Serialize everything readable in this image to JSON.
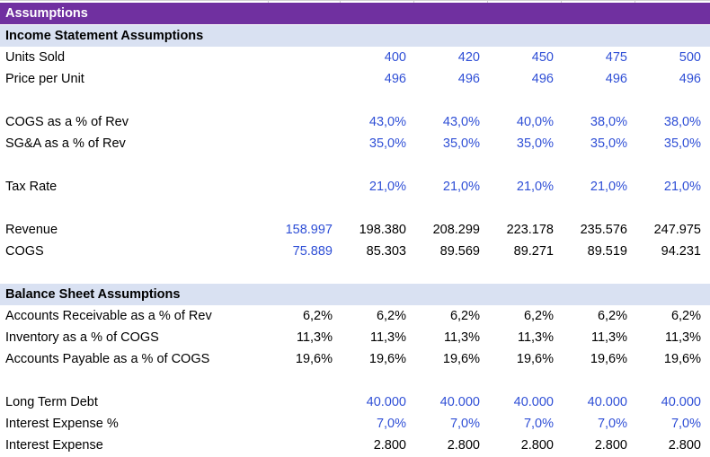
{
  "title": "Assumptions",
  "income_section": "Income Statement Assumptions",
  "balance_section": "Balance Sheet Assumptions",
  "rows": {
    "units_sold": {
      "label": "Units Sold",
      "values": [
        "",
        "400",
        "420",
        "450",
        "475",
        "500"
      ]
    },
    "price_per_unit": {
      "label": "Price per Unit",
      "values": [
        "",
        "496",
        "496",
        "496",
        "496",
        "496"
      ]
    },
    "cogs_pct": {
      "label": "COGS as a % of Rev",
      "values": [
        "",
        "43,0%",
        "43,0%",
        "40,0%",
        "38,0%",
        "38,0%"
      ]
    },
    "sga_pct": {
      "label": "SG&A as a % of Rev",
      "values": [
        "",
        "35,0%",
        "35,0%",
        "35,0%",
        "35,0%",
        "35,0%"
      ]
    },
    "tax_rate": {
      "label": "Tax Rate",
      "values": [
        "",
        "21,0%",
        "21,0%",
        "21,0%",
        "21,0%",
        "21,0%"
      ]
    },
    "revenue": {
      "label": "Revenue",
      "values": [
        "158.997",
        "198.380",
        "208.299",
        "223.178",
        "235.576",
        "247.975"
      ]
    },
    "cogs": {
      "label": "COGS",
      "values": [
        "75.889",
        "85.303",
        "89.569",
        "89.271",
        "89.519",
        "94.231"
      ]
    },
    "ar_pct": {
      "label": "Accounts Receivable as a % of Rev",
      "values": [
        "6,2%",
        "6,2%",
        "6,2%",
        "6,2%",
        "6,2%",
        "6,2%"
      ]
    },
    "inv_pct": {
      "label": "Inventory as a % of COGS",
      "values": [
        "11,3%",
        "11,3%",
        "11,3%",
        "11,3%",
        "11,3%",
        "11,3%"
      ]
    },
    "ap_pct": {
      "label": "Accounts Payable as a % of COGS",
      "values": [
        "19,6%",
        "19,6%",
        "19,6%",
        "19,6%",
        "19,6%",
        "19,6%"
      ]
    },
    "ltd": {
      "label": "Long Term Debt",
      "values": [
        "",
        "40.000",
        "40.000",
        "40.000",
        "40.000",
        "40.000"
      ]
    },
    "int_pct": {
      "label": "Interest Expense %",
      "values": [
        "",
        "7,0%",
        "7,0%",
        "7,0%",
        "7,0%",
        "7,0%"
      ]
    },
    "int_exp": {
      "label": "Interest Expense",
      "values": [
        "",
        "2.800",
        "2.800",
        "2.800",
        "2.800",
        "2.800"
      ]
    }
  },
  "colors": {
    "header": "#7030A0",
    "section": "#D9E1F2",
    "input_blue": "#2F4FD6"
  }
}
